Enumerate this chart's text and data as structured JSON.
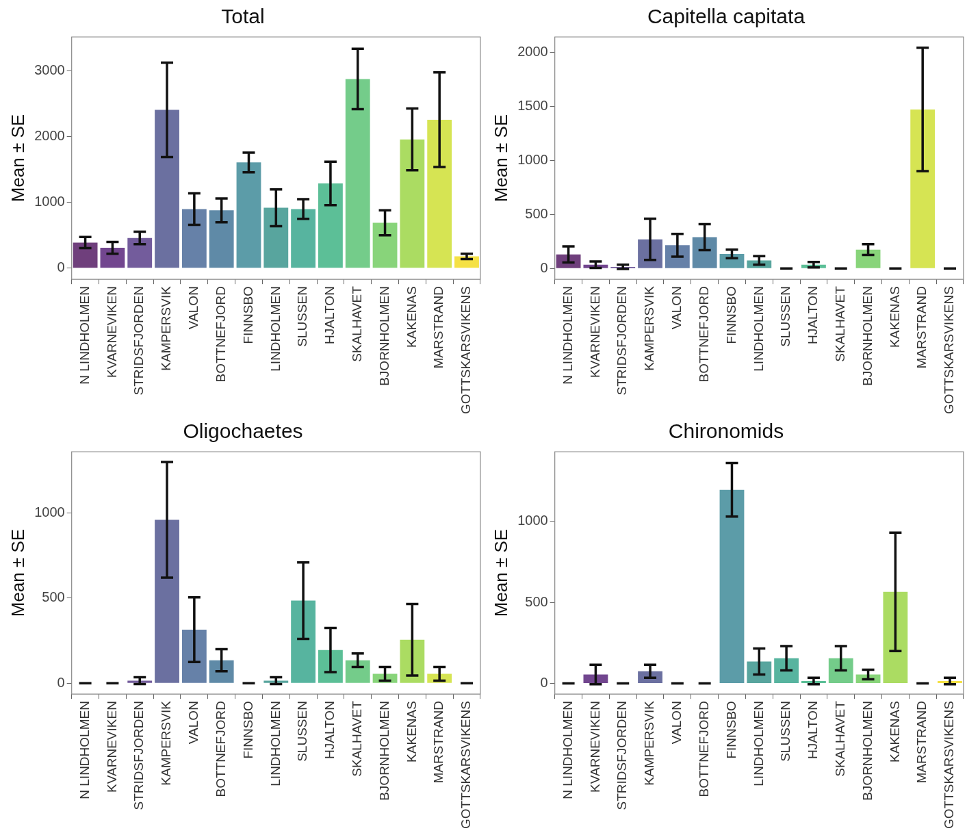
{
  "chart_data": [
    {
      "type": "bar",
      "title": "Total",
      "ylabel": "Mean ± SE",
      "grid": false,
      "legend": false,
      "categories": [
        "N LINDHOLMEN",
        "KVARNEVIKEN",
        "STRIDSFJORDEN",
        "KAMPERSVIK",
        "VALON",
        "BOTTNEFJORD",
        "FINNSBO",
        "LINDHOLMEN",
        "SLUSSEN",
        "HJALTON",
        "SKALHAVET",
        "BJORNHOLMEN",
        "KAKENAS",
        "MARSTRAND",
        "GOTTSKARSVIKENS"
      ],
      "values": [
        390,
        310,
        460,
        2410,
        900,
        880,
        1610,
        920,
        900,
        1290,
        2880,
        690,
        1960,
        2260,
        180
      ],
      "errors": [
        85,
        90,
        95,
        720,
        240,
        180,
        150,
        280,
        150,
        330,
        460,
        190,
        470,
        720,
        40
      ],
      "colors": [
        "#6f3f7c",
        "#72468f",
        "#735c9c",
        "#6b70a0",
        "#6681a8",
        "#5f8aa7",
        "#5c9ca8",
        "#58a59e",
        "#57b49f",
        "#5cbf97",
        "#74cc8a",
        "#88d47a",
        "#abdc62",
        "#d6e453",
        "#f5e145"
      ],
      "ylim": [
        -170,
        3520
      ],
      "yticks": [
        0,
        1000,
        2000,
        3000
      ]
    },
    {
      "type": "bar",
      "title": "Capitella capitata",
      "ylabel": "Mean ± SE",
      "grid": false,
      "legend": false,
      "categories": [
        "N LINDHOLMEN",
        "KVARNEVIKEN",
        "STRIDSFJORDEN",
        "KAMPERSVIK",
        "VALON",
        "BOTTNEFJORD",
        "FINNSBO",
        "LINDHOLMEN",
        "SLUSSEN",
        "HJALTON",
        "SKALHAVET",
        "BJORNHOLMEN",
        "KAKENAS",
        "MARSTRAND",
        "GOTTSKARSVIKENS"
      ],
      "values": [
        130,
        35,
        15,
        270,
        215,
        290,
        135,
        75,
        0,
        35,
        0,
        175,
        0,
        1470,
        0
      ],
      "errors": [
        75,
        30,
        20,
        190,
        105,
        120,
        40,
        40,
        0,
        25,
        0,
        50,
        0,
        570,
        0
      ],
      "colors": [
        "#6f3f7c",
        "#72468f",
        "#735c9c",
        "#6b70a0",
        "#6681a8",
        "#5f8aa7",
        "#5c9ca8",
        "#58a59e",
        "#57b49f",
        "#5cbf97",
        "#74cc8a",
        "#88d47a",
        "#abdc62",
        "#d6e453",
        "#f5e145"
      ],
      "ylim": [
        -100,
        2140
      ],
      "yticks": [
        0,
        500,
        1000,
        1500,
        2000
      ]
    },
    {
      "type": "bar",
      "title": "Oligochaetes",
      "ylabel": "Mean ± SE",
      "grid": false,
      "legend": false,
      "categories": [
        "N LINDHOLMEN",
        "KVARNEVIKEN",
        "STRIDSFJORDEN",
        "KAMPERSVIK",
        "VALON",
        "BOTTNEFJORD",
        "FINNSBO",
        "LINDHOLMEN",
        "SLUSSEN",
        "HJALTON",
        "SKALHAVET",
        "BJORNHOLMEN",
        "KAKENAS",
        "MARSTRAND",
        "GOTTSKARSVIKENS"
      ],
      "values": [
        0,
        0,
        15,
        960,
        315,
        135,
        0,
        15,
        485,
        195,
        135,
        55,
        255,
        55,
        0
      ],
      "errors": [
        0,
        0,
        20,
        340,
        190,
        65,
        0,
        20,
        225,
        130,
        40,
        40,
        210,
        40,
        0
      ],
      "colors": [
        "#6f3f7c",
        "#72468f",
        "#735c9c",
        "#6b70a0",
        "#6681a8",
        "#5f8aa7",
        "#5c9ca8",
        "#58a59e",
        "#57b49f",
        "#5cbf97",
        "#74cc8a",
        "#88d47a",
        "#abdc62",
        "#d6e453",
        "#f5e145"
      ],
      "ylim": [
        -64,
        1360
      ],
      "yticks": [
        0,
        500,
        1000
      ]
    },
    {
      "type": "bar",
      "title": "Chironomids",
      "ylabel": "Mean ± SE",
      "grid": false,
      "legend": false,
      "categories": [
        "N LINDHOLMEN",
        "KVARNEVIKEN",
        "STRIDSFJORDEN",
        "KAMPERSVIK",
        "VALON",
        "BOTTNEFJORD",
        "FINNSBO",
        "LINDHOLMEN",
        "SLUSSEN",
        "HJALTON",
        "SKALHAVET",
        "BJORNHOLMEN",
        "KAKENAS",
        "MARSTRAND",
        "GOTTSKARSVIKENS"
      ],
      "values": [
        0,
        55,
        0,
        75,
        0,
        0,
        1195,
        135,
        155,
        15,
        155,
        55,
        565,
        0,
        15
      ],
      "errors": [
        0,
        60,
        0,
        40,
        0,
        0,
        165,
        80,
        75,
        20,
        75,
        30,
        365,
        0,
        20
      ],
      "colors": [
        "#6f3f7c",
        "#72468f",
        "#735c9c",
        "#6b70a0",
        "#6681a8",
        "#5f8aa7",
        "#5c9ca8",
        "#58a59e",
        "#57b49f",
        "#5cbf97",
        "#74cc8a",
        "#88d47a",
        "#abdc62",
        "#d6e453",
        "#f5e145"
      ],
      "ylim": [
        -66,
        1430
      ],
      "yticks": [
        0,
        500,
        1000
      ]
    }
  ]
}
